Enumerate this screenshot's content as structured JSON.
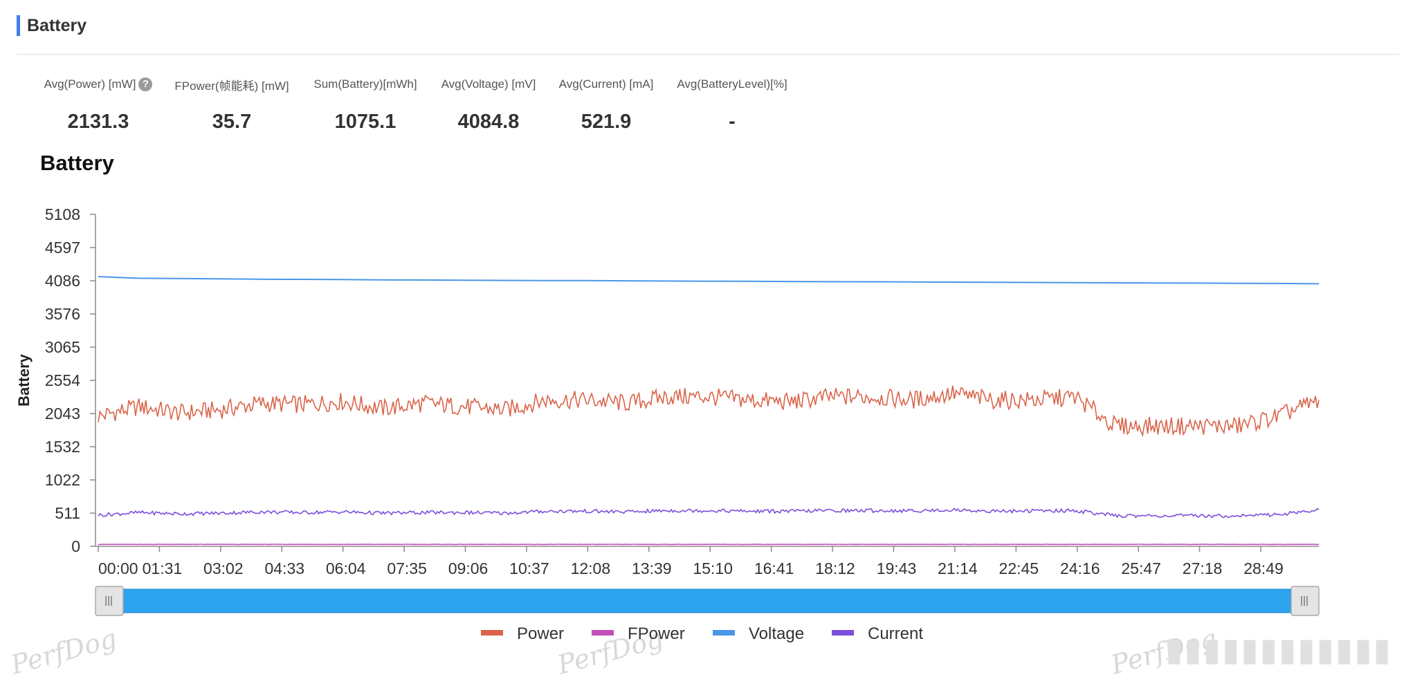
{
  "section": {
    "title": "Battery"
  },
  "metrics": [
    {
      "label": "Avg(Power) [mW]",
      "value": "2131.3",
      "has_help": true
    },
    {
      "label": "FPower(帧能耗) [mW]",
      "value": "35.7"
    },
    {
      "label": "Sum(Battery)[mWh]",
      "value": "1075.1"
    },
    {
      "label": "Avg(Voltage) [mV]",
      "value": "4084.8"
    },
    {
      "label": "Avg(Current) [mA]",
      "value": "521.9"
    },
    {
      "label": "Avg(BatteryLevel)[%]",
      "value": "-"
    }
  ],
  "help_icon": "question-mark-icon",
  "watermark": "PerfDog",
  "colors": {
    "accent": "#3f7fe6",
    "power": "#d9644a",
    "fpower": "#c44fb8",
    "voltage": "#4a96e8",
    "current": "#7b4fdb",
    "slider": "#2ea3ee"
  },
  "chart_data": {
    "type": "line",
    "title": "Battery",
    "ylabel": "Battery",
    "xlabel": "",
    "ylim": [
      0,
      5108
    ],
    "y_ticks": [
      "0",
      "511",
      "1022",
      "1532",
      "2043",
      "2554",
      "3065",
      "3576",
      "4086",
      "4597",
      "5108"
    ],
    "x_ticks": [
      "00:00",
      "01:31",
      "03:02",
      "04:33",
      "06:04",
      "07:35",
      "09:06",
      "10:37",
      "12:08",
      "13:39",
      "15:10",
      "16:41",
      "18:12",
      "19:43",
      "21:14",
      "22:45",
      "24:16",
      "25:47",
      "27:18",
      "28:49"
    ],
    "x": [
      "00:00",
      "01:00",
      "02:00",
      "03:00",
      "04:00",
      "05:00",
      "06:00",
      "07:00",
      "08:00",
      "09:00",
      "10:00",
      "11:00",
      "12:00",
      "13:00",
      "14:00",
      "15:00",
      "16:00",
      "17:00",
      "18:00",
      "19:00",
      "20:00",
      "21:00",
      "22:00",
      "23:00",
      "24:00",
      "25:00",
      "26:00",
      "27:00",
      "28:00",
      "29:00",
      "30:00"
    ],
    "legend_position": "bottom",
    "series": [
      {
        "name": "Power",
        "color": "#d9644a",
        "values": [
          2000,
          2150,
          2050,
          2100,
          2200,
          2180,
          2230,
          2120,
          2200,
          2150,
          2100,
          2250,
          2250,
          2200,
          2300,
          2300,
          2250,
          2220,
          2300,
          2300,
          2250,
          2350,
          2250,
          2250,
          2300,
          1850,
          1850,
          1850,
          1850,
          2000,
          2250
        ]
      },
      {
        "name": "FPower",
        "color": "#c44fb8",
        "values": [
          30,
          30,
          30,
          30,
          30,
          30,
          30,
          30,
          30,
          30,
          30,
          30,
          30,
          30,
          30,
          30,
          30,
          30,
          30,
          30,
          30,
          30,
          30,
          30,
          30,
          30,
          30,
          30,
          30,
          30,
          30
        ]
      },
      {
        "name": "Voltage",
        "color": "#4a96e8",
        "values": [
          4150,
          4125,
          4120,
          4115,
          4110,
          4108,
          4105,
          4100,
          4098,
          4095,
          4092,
          4090,
          4088,
          4085,
          4082,
          4080,
          4078,
          4075,
          4072,
          4070,
          4067,
          4065,
          4062,
          4060,
          4058,
          4055,
          4052,
          4050,
          4047,
          4045,
          4040
        ]
      },
      {
        "name": "Current",
        "color": "#7b4fdb",
        "values": [
          480,
          520,
          500,
          510,
          530,
          520,
          530,
          510,
          520,
          520,
          510,
          540,
          540,
          530,
          550,
          550,
          540,
          540,
          550,
          550,
          545,
          560,
          540,
          545,
          550,
          470,
          470,
          470,
          470,
          490,
          560
        ]
      }
    ]
  },
  "range_slider": {
    "start": 0,
    "end": 1
  }
}
